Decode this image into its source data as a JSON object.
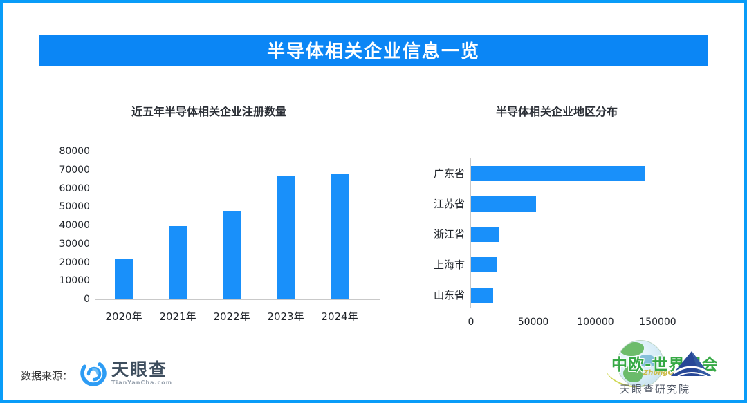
{
  "banner": {
    "title": "半导体相关企业信息一览",
    "bg_color": "#0b86f5",
    "text_color": "#ffffff"
  },
  "colors": {
    "border_blue": "#099cf8",
    "bar_blue": "#1990fa",
    "axis_gray": "#c9c9c9"
  },
  "chart_data": [
    {
      "type": "bar",
      "title": "近五年半导体相关企业注册数量",
      "categories": [
        "2020年",
        "2021年",
        "2022年",
        "2023年",
        "2024年"
      ],
      "values": [
        22000,
        39500,
        48000,
        67000,
        68000
      ],
      "xlabel": "",
      "ylabel": "",
      "ylim": [
        0,
        80000
      ],
      "yticks": [
        0,
        10000,
        20000,
        30000,
        40000,
        50000,
        60000,
        70000,
        80000
      ],
      "grid": false,
      "legend": "none",
      "bar_color": "#1990fa"
    },
    {
      "type": "bar",
      "orientation": "horizontal",
      "title": "半导体相关企业地区分布",
      "categories": [
        "广东省",
        "江苏省",
        "浙江省",
        "上海市",
        "山东省"
      ],
      "values": [
        140000,
        52000,
        23000,
        21000,
        18000
      ],
      "xlabel": "",
      "ylabel": "",
      "xlim": [
        0,
        150000
      ],
      "xticks": [
        0,
        50000,
        100000,
        150000
      ],
      "grid": false,
      "legend": "none",
      "bar_color": "#1990fa"
    }
  ],
  "footer": {
    "source_label": "数据来源：",
    "tianyancha": {
      "name": "天眼查",
      "domain": "TianYanCha.com",
      "brand_color": "#2d9cf4"
    },
    "watermark": {
      "expo_title": "中欧-世界展会",
      "expo_subtitle": "ZhongOu",
      "institute": "天眼查研究院"
    }
  }
}
